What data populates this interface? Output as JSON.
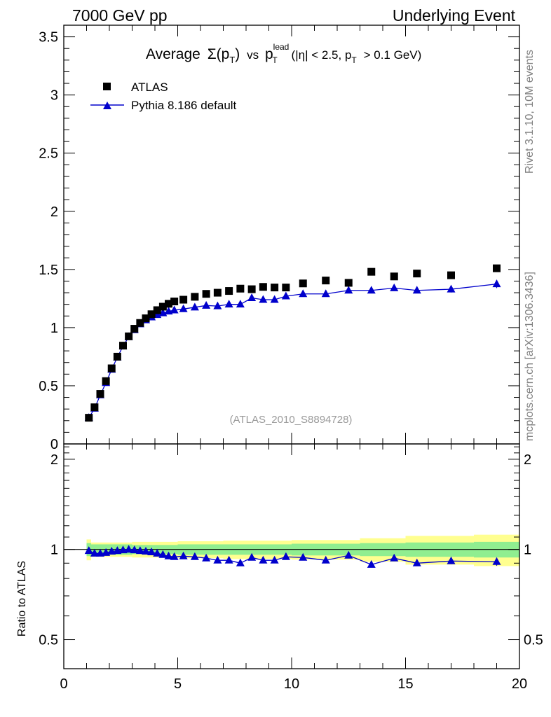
{
  "header": {
    "left": "7000 GeV pp",
    "right": "Underlying Event"
  },
  "side_labels": {
    "rivet": "Rivet 3.1.10,  10M events",
    "mcplots": "mcplots.cern.ch [arXiv:1306.3436]"
  },
  "chart_data": {
    "type": "scatter",
    "title": {
      "prefix": "Average",
      "sigma": "Σ(p",
      "sigma_sub": "T",
      "sigma_close": ")",
      "vs": "vs",
      "p": "p",
      "p_sup": "lead",
      "p_sub": "T",
      "cut1": "(|η| < 2.5, p",
      "cut1_sub": "T",
      "cut2": "> 0.1 GeV)"
    },
    "analysis_label": "(ATLAS_2010_S8894728)",
    "xlim": [
      0,
      20
    ],
    "ylim_main": [
      0,
      3.6
    ],
    "ylim_ratio": [
      0.4,
      2.25
    ],
    "x_ticks": [
      "0",
      "5",
      "10",
      "15",
      "20"
    ],
    "y_ticks_main": [
      "0",
      "0.5",
      "1",
      "1.5",
      "2",
      "2.5",
      "3",
      "3.5"
    ],
    "y_ticks_ratio": [
      "0.5",
      "1",
      "2"
    ],
    "ratio_ylabel": "Ratio to ATLAS",
    "legend": [
      {
        "name": "ATLAS",
        "marker": "square",
        "color": "#000000"
      },
      {
        "name": "Pythia 8.186 default",
        "marker": "triangle",
        "color": "#0000cc"
      }
    ],
    "x": [
      1.1,
      1.35,
      1.6,
      1.85,
      2.1,
      2.35,
      2.6,
      2.85,
      3.1,
      3.35,
      3.6,
      3.85,
      4.1,
      4.35,
      4.6,
      4.85,
      5.25,
      5.75,
      6.25,
      6.75,
      7.25,
      7.75,
      8.25,
      8.75,
      9.25,
      9.75,
      10.5,
      11.5,
      12.5,
      13.5,
      14.5,
      15.5,
      17.0,
      19.0
    ],
    "series": [
      {
        "name": "ATLAS",
        "values": [
          0.225,
          0.315,
          0.43,
          0.54,
          0.65,
          0.75,
          0.845,
          0.925,
          0.99,
          1.04,
          1.08,
          1.115,
          1.15,
          1.18,
          1.205,
          1.225,
          1.24,
          1.265,
          1.29,
          1.3,
          1.315,
          1.335,
          1.33,
          1.35,
          1.345,
          1.345,
          1.38,
          1.405,
          1.385,
          1.48,
          1.44,
          1.465,
          1.45,
          1.51
        ]
      },
      {
        "name": "Pythia 8.186 default",
        "values": [
          0.225,
          0.305,
          0.42,
          0.525,
          0.64,
          0.745,
          0.84,
          0.92,
          0.98,
          1.03,
          1.065,
          1.09,
          1.11,
          1.125,
          1.14,
          1.15,
          1.16,
          1.175,
          1.19,
          1.185,
          1.2,
          1.2,
          1.255,
          1.24,
          1.24,
          1.27,
          1.29,
          1.29,
          1.32,
          1.32,
          1.34,
          1.32,
          1.33,
          1.375
        ],
        "errors": [
          0.005,
          0.005,
          0.005,
          0.005,
          0.005,
          0.005,
          0.005,
          0.005,
          0.005,
          0.005,
          0.006,
          0.006,
          0.006,
          0.006,
          0.007,
          0.007,
          0.008,
          0.009,
          0.01,
          0.01,
          0.011,
          0.012,
          0.013,
          0.014,
          0.015,
          0.015,
          0.016,
          0.017,
          0.018,
          0.02,
          0.022,
          0.025,
          0.028,
          0.035
        ]
      }
    ],
    "ratio": {
      "values": [
        0.99,
        0.97,
        0.97,
        0.975,
        0.985,
        0.99,
        0.995,
        1.0,
        0.995,
        0.99,
        0.985,
        0.98,
        0.97,
        0.96,
        0.95,
        0.945,
        0.95,
        0.945,
        0.935,
        0.92,
        0.92,
        0.9,
        0.94,
        0.92,
        0.92,
        0.945,
        0.94,
        0.92,
        0.955,
        0.89,
        0.935,
        0.9,
        0.915,
        0.91
      ],
      "errors": [
        0.005,
        0.005,
        0.005,
        0.005,
        0.005,
        0.005,
        0.005,
        0.005,
        0.005,
        0.005,
        0.005,
        0.005,
        0.005,
        0.005,
        0.005,
        0.006,
        0.006,
        0.007,
        0.008,
        0.008,
        0.009,
        0.01,
        0.01,
        0.011,
        0.012,
        0.012,
        0.012,
        0.013,
        0.013,
        0.015,
        0.017,
        0.02,
        0.022,
        0.028
      ],
      "band_edges": [
        1.0,
        1.2,
        3.0,
        5.0,
        7.0,
        10.0,
        13.0,
        15.0,
        18.0,
        20.0
      ],
      "band_stat": [
        0.05,
        0.04,
        0.035,
        0.04,
        0.04,
        0.045,
        0.05,
        0.055,
        0.06
      ],
      "band_total": [
        0.08,
        0.055,
        0.06,
        0.065,
        0.07,
        0.075,
        0.09,
        0.11,
        0.12
      ],
      "colors": {
        "stat": "#90ee90",
        "total": "#ffff90",
        "reference": "#000000",
        "mc": "#0000cc"
      }
    }
  }
}
